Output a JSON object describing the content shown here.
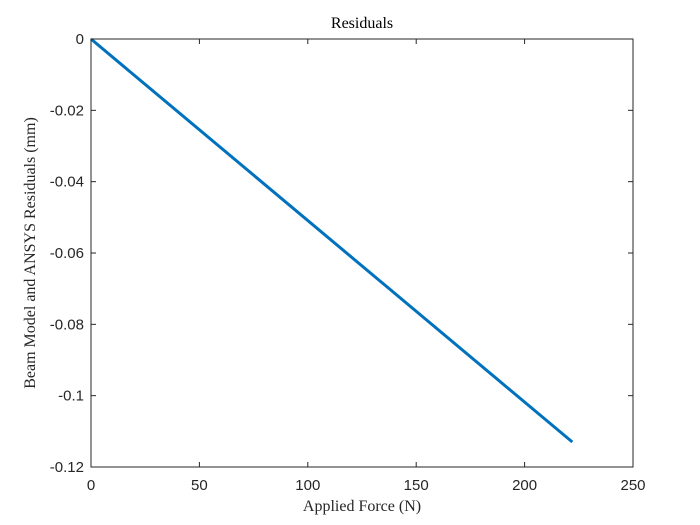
{
  "chart_data": {
    "type": "line",
    "title": "Residuals",
    "xlabel": "Applied Force (N)",
    "ylabel": "Beam Model and ANSYS Residuals (mm)",
    "xlim": [
      0,
      250
    ],
    "ylim": [
      -0.12,
      0
    ],
    "x_ticks": [
      0,
      50,
      100,
      150,
      200,
      250
    ],
    "x_tick_labels": [
      "0",
      "50",
      "100",
      "150",
      "200",
      "250"
    ],
    "y_ticks": [
      0,
      -0.02,
      -0.04,
      -0.06,
      -0.08,
      -0.1,
      -0.12
    ],
    "y_tick_labels": [
      "0",
      "-0.02",
      "-0.04",
      "-0.06",
      "-0.08",
      "-0.1",
      "-0.12"
    ],
    "grid": false,
    "series": [
      {
        "color": "#0072BD",
        "x": [
          0,
          222
        ],
        "y": [
          0,
          -0.113
        ]
      }
    ]
  }
}
